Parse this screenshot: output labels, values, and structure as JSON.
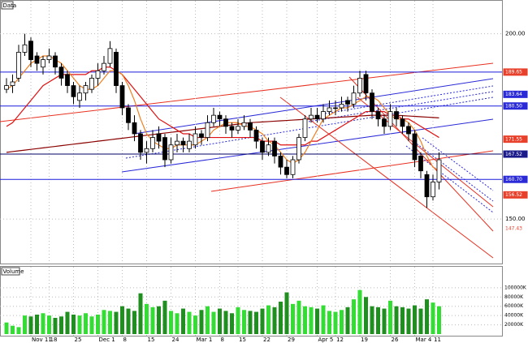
{
  "chart_data": {
    "type": "candlestick",
    "title": "Data",
    "categories": [
      null,
      null,
      null,
      null,
      "Nov 11",
      null,
      null,
      "18",
      null,
      null,
      null,
      "25",
      null,
      null,
      null,
      "Dec 1",
      null,
      null,
      null,
      "8",
      null,
      null,
      null,
      "15",
      null,
      null,
      null,
      "24",
      null,
      null,
      null,
      "Mar 1",
      null,
      null,
      null,
      "8",
      null,
      null,
      "15",
      null,
      null,
      null,
      "22",
      null,
      null,
      null,
      "29",
      null,
      null,
      null,
      null,
      "Apr 5",
      null,
      null,
      "12",
      null,
      null,
      null,
      "19",
      null,
      null,
      null,
      null,
      "26",
      null,
      null,
      null,
      "Mar 4",
      null,
      null,
      "11",
      null
    ],
    "open": [
      185,
      186,
      188,
      195,
      198,
      194,
      191,
      193,
      194,
      191,
      189,
      186,
      182,
      184,
      185,
      188,
      190,
      192,
      195,
      186,
      180,
      176,
      173,
      168,
      169,
      173,
      172,
      166,
      170,
      171,
      169,
      170,
      173,
      172,
      176,
      178,
      177,
      175,
      174,
      175,
      176,
      174,
      171,
      168,
      171,
      167,
      164,
      162,
      166,
      172,
      177,
      178,
      177,
      179,
      180,
      180,
      182,
      181,
      184,
      189,
      184,
      179,
      177,
      175,
      179,
      177,
      175,
      173,
      167,
      162,
      156,
      160
    ],
    "high": [
      188,
      189,
      197,
      200,
      199,
      195,
      194,
      196,
      195,
      192,
      190,
      187,
      186,
      187,
      189,
      192,
      194,
      198,
      196,
      187,
      181,
      178,
      174,
      171,
      174,
      175,
      173,
      172,
      173,
      172,
      173,
      175,
      174,
      178,
      180,
      179,
      178,
      176,
      177,
      178,
      177,
      175,
      172,
      172,
      172,
      168,
      166,
      167,
      173,
      178,
      180,
      180,
      181,
      182,
      182,
      183,
      183,
      186,
      190,
      190,
      185,
      180,
      178,
      181,
      180,
      178,
      176,
      174,
      168,
      163,
      162,
      168
    ],
    "low": [
      184,
      184,
      187,
      194,
      191,
      190,
      189,
      192,
      189,
      186,
      184,
      181,
      180,
      182,
      184,
      186,
      189,
      191,
      184,
      178,
      174,
      171,
      166,
      165,
      168,
      169,
      164,
      165,
      168,
      168,
      168,
      169,
      170,
      171,
      175,
      175,
      173,
      172,
      173,
      174,
      172,
      169,
      166,
      167,
      165,
      162,
      161,
      161,
      165,
      171,
      176,
      176,
      176,
      178,
      178,
      179,
      179,
      180,
      183,
      182,
      177,
      175,
      173,
      174,
      175,
      173,
      171,
      164,
      161,
      153,
      155,
      158
    ],
    "close": [
      186,
      187,
      195,
      197,
      193,
      192,
      193,
      194,
      191,
      188,
      186,
      183,
      184,
      186,
      188,
      190,
      192,
      196,
      186,
      180,
      176,
      173,
      168,
      169,
      172,
      171,
      166,
      170,
      171,
      170,
      171,
      173,
      172,
      176,
      178,
      177,
      175,
      174,
      175,
      176,
      174,
      171,
      168,
      170,
      167,
      164,
      162,
      166,
      172,
      177,
      178,
      177,
      179,
      180,
      180,
      181,
      181,
      184,
      188,
      184,
      179,
      177,
      175,
      179,
      177,
      175,
      173,
      166,
      163,
      156,
      160,
      166
    ],
    "up_color": "#ffffff",
    "down_color": "#000000",
    "ylim": [
      138,
      208
    ],
    "yticks": [
      {
        "value": 200,
        "label": "200.00"
      },
      {
        "value": 150,
        "label": "150.00"
      }
    ],
    "grid": true,
    "overlays": [
      {
        "color": "#8b0000",
        "values": [
          168,
          168.2,
          168.4,
          168.6,
          168.8,
          169,
          169.2,
          169.4,
          169.6,
          169.8,
          170,
          170.2,
          170.4,
          170.6,
          170.8,
          171,
          171.2,
          171.4,
          171.6,
          171.8,
          172,
          172.2,
          172.4,
          172.6,
          172.8,
          173,
          173.2,
          173.4,
          173.6,
          173.8,
          174,
          174.2,
          174.4,
          174.6,
          174.8,
          175,
          175.2,
          175.4,
          175.6,
          175.8,
          176,
          176.1,
          176.2,
          176.3,
          176.4,
          176.5,
          176.6,
          176.7,
          176.8,
          176.9,
          177,
          177.1,
          177.2,
          177.3,
          177.4,
          177.5,
          177.6,
          177.7,
          177.8,
          177.9,
          178,
          178,
          178,
          178,
          178,
          177.9,
          177.8,
          177.7,
          177.6,
          177.5,
          177.4,
          177.3
        ]
      },
      {
        "color": "#e01010",
        "values": [
          175,
          176,
          178,
          180,
          182,
          184,
          186,
          187,
          188,
          189,
          189,
          189,
          189,
          189,
          190,
          190,
          191,
          191,
          190,
          189,
          187,
          185,
          183,
          181,
          179,
          177,
          176,
          175,
          174,
          173,
          173,
          172,
          172,
          172,
          172,
          172,
          172,
          172,
          172,
          172,
          172,
          172,
          171,
          171,
          171,
          170,
          170,
          170,
          170,
          170,
          171,
          171,
          172,
          173,
          174,
          175,
          176,
          177,
          178,
          179,
          179,
          179,
          179,
          178,
          178,
          177,
          177,
          176,
          175,
          174,
          173,
          172
        ]
      },
      {
        "color": "#f08020",
        "values": [
          185,
          186,
          188,
          190,
          192,
          193,
          194,
          194,
          193,
          192,
          190,
          188,
          186,
          185,
          185,
          186,
          188,
          190,
          190,
          189,
          186,
          182,
          177,
          173,
          171,
          170,
          169,
          169,
          170,
          170,
          170,
          170,
          171,
          172,
          174,
          175,
          176,
          176,
          176,
          175,
          175,
          174,
          173,
          171,
          170,
          168,
          166,
          165,
          166,
          168,
          171,
          174,
          177,
          178,
          179,
          180,
          180,
          181,
          182,
          183,
          183,
          182,
          180,
          178,
          177,
          177,
          176,
          174,
          171,
          167,
          164,
          163
        ]
      }
    ],
    "markers": [
      {
        "value": 189.65,
        "color": "#e8402a",
        "line_color": "#1a1adb"
      },
      {
        "value": 183.64,
        "color": "#2a2ad8"
      },
      {
        "value": 180.5,
        "label": "180.50",
        "color": "#2a2ad8",
        "line_color": "#1a1adb"
      },
      {
        "value": 171.55,
        "color": "#e8402a"
      },
      {
        "value": 167.52,
        "color": "#1a1a8a",
        "line_color": "#000066"
      },
      {
        "value": 160.7,
        "label": "160.70",
        "color": "#2a2ad8",
        "line_color": "#1a1adb"
      },
      {
        "value": 156.52,
        "color": "#e8402a"
      },
      {
        "value": 147.43,
        "color": "#ffffff",
        "text_color": "#e8402a"
      }
    ],
    "volume": {
      "title": "Volume",
      "values": [
        25000,
        18000,
        15000,
        40000,
        38000,
        42000,
        45000,
        40000,
        35000,
        38000,
        48000,
        42000,
        40000,
        45000,
        38000,
        42000,
        52000,
        50000,
        48000,
        60000,
        55000,
        50000,
        88000,
        65000,
        58000,
        60000,
        72000,
        50000,
        45000,
        55000,
        48000,
        40000,
        52000,
        60000,
        48000,
        55000,
        50000,
        45000,
        58000,
        52000,
        50000,
        48000,
        55000,
        62000,
        58000,
        70000,
        90000,
        65000,
        72000,
        60000,
        58000,
        55000,
        62000,
        50000,
        48000,
        52000,
        58000,
        75000,
        95000,
        80000,
        60000,
        58000,
        55000,
        72000,
        60000,
        58000,
        55000,
        62000,
        55000,
        75000,
        68000,
        60000
      ],
      "up_color": "#33dd33",
      "down_color": "#1f8f1f",
      "ylim": [
        0,
        140000
      ],
      "yticks": [
        {
          "value": 20000,
          "label": "20000K"
        },
        {
          "value": 40000,
          "label": "40000K"
        },
        {
          "value": 60000,
          "label": "60000K"
        },
        {
          "value": 80000,
          "label": "80000K"
        },
        {
          "value": 100000,
          "label": "100000K"
        }
      ]
    }
  }
}
